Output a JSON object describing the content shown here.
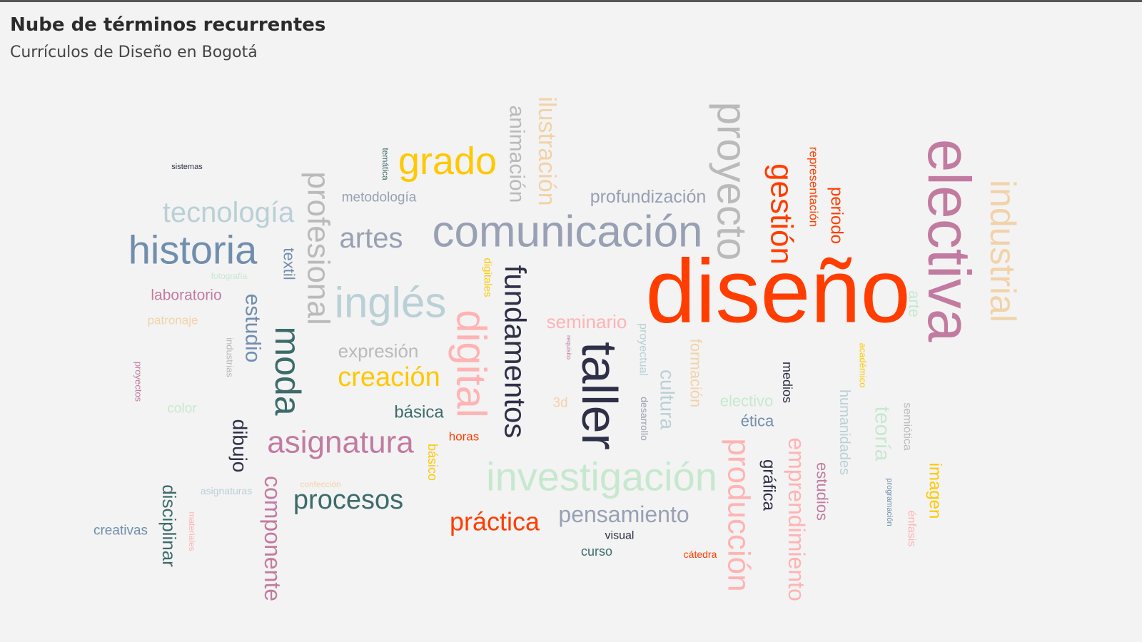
{
  "header": {
    "title": "Nube de términos recurrentes",
    "subtitle": "Currículos de Diseño en Bogotá"
  },
  "chart_data": {
    "type": "wordcloud",
    "palette": [
      "#ff3d00",
      "#c27ba0",
      "#ffb3b3",
      "#2d3047",
      "#bababa",
      "#98a0b4",
      "#b9d0d6",
      "#708ead",
      "#3d6b6b",
      "#ffc800",
      "#f2d2a9",
      "#c7e8cf"
    ],
    "words": [
      {
        "text": "diseño",
        "color": "#ff3d00",
        "rotate": 0,
        "weight": 10
      },
      {
        "text": "electiva",
        "color": "#c27ba0",
        "rotate": 90,
        "weight": 9.5
      },
      {
        "text": "taller",
        "color": "#2d3047",
        "rotate": 90,
        "weight": 7.5
      },
      {
        "text": "proyecto",
        "color": "#bababa",
        "rotate": 90,
        "weight": 7.5
      },
      {
        "text": "comunicación",
        "color": "#98a0b4",
        "rotate": 0,
        "weight": 7
      },
      {
        "text": "digital",
        "color": "#ffb3b3",
        "rotate": 90,
        "weight": 7
      },
      {
        "text": "investigación",
        "color": "#c7e8cf",
        "rotate": 0,
        "weight": 6.5
      },
      {
        "text": "historia",
        "color": "#708ead",
        "rotate": 0,
        "weight": 6.5
      },
      {
        "text": "inglés",
        "color": "#b9d0d6",
        "rotate": 0,
        "weight": 6.5
      },
      {
        "text": "industrial",
        "color": "#f2d2a9",
        "rotate": 90,
        "weight": 6.5
      },
      {
        "text": "producción",
        "color": "#ffb3b3",
        "rotate": 90,
        "weight": 6.5
      },
      {
        "text": "gestión",
        "color": "#ff3d00",
        "rotate": 90,
        "weight": 6
      },
      {
        "text": "moda",
        "color": "#3d6b6b",
        "rotate": 90,
        "weight": 6
      },
      {
        "text": "grado",
        "color": "#ffc800",
        "rotate": 0,
        "weight": 6
      },
      {
        "text": "fundamentos",
        "color": "#2d3047",
        "rotate": 90,
        "weight": 5.5
      },
      {
        "text": "profesional",
        "color": "#bababa",
        "rotate": 90,
        "weight": 5.5
      },
      {
        "text": "asignatura",
        "color": "#c27ba0",
        "rotate": 0,
        "weight": 5.5
      },
      {
        "text": "emprendimiento",
        "color": "#ffb3b3",
        "rotate": 90,
        "weight": 4.5
      },
      {
        "text": "tecnología",
        "color": "#b9d0d6",
        "rotate": 0,
        "weight": 4.5
      },
      {
        "text": "artes",
        "color": "#98a0b4",
        "rotate": 0,
        "weight": 4.5
      },
      {
        "text": "creación",
        "color": "#ffc800",
        "rotate": 0,
        "weight": 4.5
      },
      {
        "text": "componente",
        "color": "#c27ba0",
        "rotate": 90,
        "weight": 4.5
      },
      {
        "text": "procesos",
        "color": "#3d6b6b",
        "rotate": 0,
        "weight": 4.5
      },
      {
        "text": "práctica",
        "color": "#ff3d00",
        "rotate": 0,
        "weight": 4.5
      },
      {
        "text": "ilustración",
        "color": "#f2d2a9",
        "rotate": 90,
        "weight": 4
      },
      {
        "text": "animación",
        "color": "#bababa",
        "rotate": 90,
        "weight": 4
      },
      {
        "text": "pensamiento",
        "color": "#98a0b4",
        "rotate": 0,
        "weight": 4
      },
      {
        "text": "estudio",
        "color": "#708ead",
        "rotate": 90,
        "weight": 4
      },
      {
        "text": "cultura",
        "color": "#b9d0d6",
        "rotate": 90,
        "weight": 3.8
      },
      {
        "text": "teoría",
        "color": "#c7e8cf",
        "rotate": 90,
        "weight": 3.8
      },
      {
        "text": "dibujo",
        "color": "#2d3047",
        "rotate": 90,
        "weight": 3.8
      },
      {
        "text": "disciplinar",
        "color": "#3d6b6b",
        "rotate": 90,
        "weight": 3.8
      },
      {
        "text": "imagen",
        "color": "#ffc800",
        "rotate": 90,
        "weight": 3.5
      },
      {
        "text": "formación",
        "color": "#f2d2a9",
        "rotate": 90,
        "weight": 3.5
      },
      {
        "text": "profundización",
        "color": "#98a0b4",
        "rotate": 0,
        "weight": 3.3
      },
      {
        "text": "expresión",
        "color": "#bababa",
        "rotate": 0,
        "weight": 3.3
      },
      {
        "text": "seminario",
        "color": "#ffb3b3",
        "rotate": 0,
        "weight": 3.3
      },
      {
        "text": "periodo",
        "color": "#ff3d00",
        "rotate": 90,
        "weight": 3.3
      },
      {
        "text": "gráfica",
        "color": "#2d3047",
        "rotate": 90,
        "weight": 3.3
      },
      {
        "text": "estudios",
        "color": "#c27ba0",
        "rotate": 90,
        "weight": 3.2
      },
      {
        "text": "básica",
        "color": "#3d6b6b",
        "rotate": 0,
        "weight": 3.2
      },
      {
        "text": "textil",
        "color": "#708ead",
        "rotate": 90,
        "weight": 3.2
      },
      {
        "text": "humanidades",
        "color": "#b9d0d6",
        "rotate": 90,
        "weight": 3
      },
      {
        "text": "laboratorio",
        "color": "#c27ba0",
        "rotate": 0,
        "weight": 3
      },
      {
        "text": "electivo",
        "color": "#c7e8cf",
        "rotate": 0,
        "weight": 3
      },
      {
        "text": "arte",
        "color": "#c7e8cf",
        "rotate": 90,
        "weight": 3
      },
      {
        "text": "ética",
        "color": "#708ead",
        "rotate": 0,
        "weight": 3
      },
      {
        "text": "metodología",
        "color": "#98a0b4",
        "rotate": 0,
        "weight": 2.8
      },
      {
        "text": "medios",
        "color": "#2d3047",
        "rotate": 90,
        "weight": 2.8
      },
      {
        "text": "básico",
        "color": "#ffc800",
        "rotate": 90,
        "weight": 2.8
      },
      {
        "text": "creativas",
        "color": "#708ead",
        "rotate": 0,
        "weight": 2.7
      },
      {
        "text": "representación",
        "color": "#ff3d00",
        "rotate": 90,
        "weight": 2.7
      },
      {
        "text": "color",
        "color": "#c7e8cf",
        "rotate": 0,
        "weight": 2.7
      },
      {
        "text": "semiótica",
        "color": "#bababa",
        "rotate": 90,
        "weight": 2.7
      },
      {
        "text": "énfasis",
        "color": "#ffb3b3",
        "rotate": 90,
        "weight": 2.7
      },
      {
        "text": "3d",
        "color": "#f2d2a9",
        "rotate": 0,
        "weight": 2.7
      },
      {
        "text": "curso",
        "color": "#3d6b6b",
        "rotate": 0,
        "weight": 2.6
      },
      {
        "text": "patronaje",
        "color": "#f2d2a9",
        "rotate": 0,
        "weight": 2.5
      },
      {
        "text": "proyectual",
        "color": "#b9d0d6",
        "rotate": 90,
        "weight": 2.5
      },
      {
        "text": "horas",
        "color": "#ff3d00",
        "rotate": 0,
        "weight": 2.5
      },
      {
        "text": "visual",
        "color": "#2d3047",
        "rotate": 0,
        "weight": 2.5
      },
      {
        "text": "asignaturas",
        "color": "#b9d0d6",
        "rotate": 0,
        "weight": 2.3
      },
      {
        "text": "digitales",
        "color": "#ffc800",
        "rotate": 90,
        "weight": 2.3
      },
      {
        "text": "desarrollo",
        "color": "#98a0b4",
        "rotate": 90,
        "weight": 2.3
      },
      {
        "text": "académico",
        "color": "#ffc800",
        "rotate": 90,
        "weight": 2.2
      },
      {
        "text": "industrias",
        "color": "#bababa",
        "rotate": 90,
        "weight": 2.2
      },
      {
        "text": "proyectos",
        "color": "#c27ba0",
        "rotate": 90,
        "weight": 2.2
      },
      {
        "text": "fotografía",
        "color": "#c7e8cf",
        "rotate": 0,
        "weight": 2
      },
      {
        "text": "temática",
        "color": "#3d6b6b",
        "rotate": 90,
        "weight": 2
      },
      {
        "text": "confección",
        "color": "#f2d2a9",
        "rotate": 0,
        "weight": 2
      },
      {
        "text": "materiales",
        "color": "#ffb3b3",
        "rotate": 90,
        "weight": 2
      },
      {
        "text": "cátedra",
        "color": "#ff3d00",
        "rotate": 0,
        "weight": 2
      },
      {
        "text": "programación",
        "color": "#708ead",
        "rotate": 90,
        "weight": 1.8
      },
      {
        "text": "sistemas",
        "color": "#2d3047",
        "rotate": 0,
        "weight": 1.8
      },
      {
        "text": "requisito",
        "color": "#c27ba0",
        "rotate": 90,
        "weight": 1.5
      }
    ]
  }
}
